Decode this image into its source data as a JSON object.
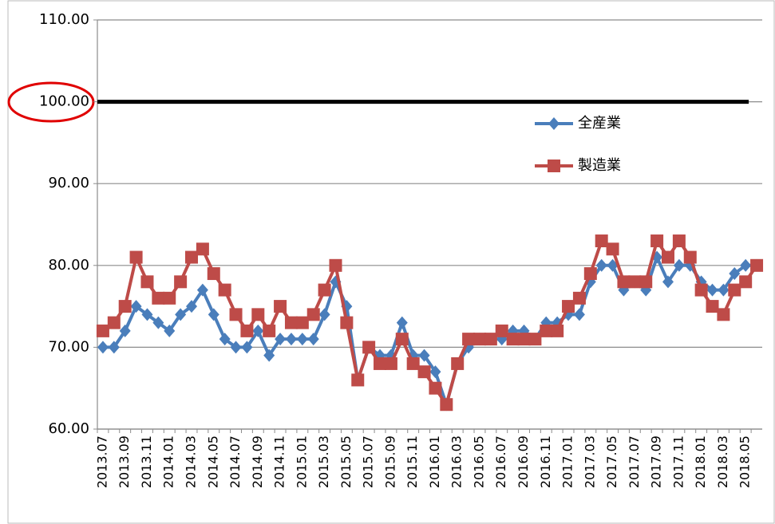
{
  "chart_data": {
    "type": "line",
    "categories": [
      "2013.07",
      null,
      "2013.09",
      null,
      "2013.11",
      null,
      "2014.01",
      null,
      "2014.03",
      null,
      "2014.05",
      null,
      "2014.07",
      null,
      "2014.09",
      null,
      "2014.11",
      null,
      "2015.01",
      null,
      "2015.03",
      null,
      "2015.05",
      null,
      "2015.07",
      null,
      "2015.09",
      null,
      "2015.11",
      null,
      "2016.01",
      null,
      "2016.03",
      null,
      "2016.05",
      null,
      "2016.07",
      null,
      "2016.09",
      null,
      "2016.11",
      null,
      "2017.01",
      null,
      "2017.03",
      null,
      "2017.05",
      null,
      "2017.07",
      null,
      "2017.09",
      null,
      "2017.11",
      null,
      "2018.01",
      null,
      "2018.03",
      null,
      "2018.05",
      null
    ],
    "series": [
      {
        "name": "全産業",
        "color": "#4a7ebb",
        "marker": "diamond",
        "values": [
          70,
          70,
          72,
          75,
          74,
          73,
          72,
          74,
          75,
          77,
          74,
          71,
          70,
          70,
          72,
          69,
          71,
          71,
          71,
          71,
          74,
          78,
          75,
          66,
          70,
          69,
          69,
          73,
          69,
          69,
          67,
          63,
          68,
          70,
          71,
          71,
          71,
          72,
          72,
          71,
          73,
          73,
          74,
          74,
          78,
          80,
          80,
          77,
          78,
          77,
          81,
          78,
          80,
          80,
          78,
          77,
          77,
          79,
          80,
          80
        ]
      },
      {
        "name": "製造業",
        "color": "#be4b48",
        "marker": "square",
        "values": [
          72,
          73,
          75,
          81,
          78,
          76,
          76,
          78,
          81,
          82,
          79,
          77,
          74,
          72,
          74,
          72,
          75,
          73,
          73,
          74,
          77,
          80,
          73,
          66,
          70,
          68,
          68,
          71,
          68,
          67,
          65,
          63,
          68,
          71,
          71,
          71,
          72,
          71,
          71,
          71,
          72,
          72,
          75,
          76,
          79,
          83,
          82,
          78,
          78,
          78,
          83,
          81,
          83,
          81,
          77,
          75,
          74,
          77,
          78,
          80
        ]
      }
    ],
    "ylim": [
      60,
      110
    ],
    "yticks": [
      {
        "value": 60,
        "label": "60.00"
      },
      {
        "value": 70,
        "label": "70.00"
      },
      {
        "value": 80,
        "label": "80.00"
      },
      {
        "value": 90,
        "label": "90.00"
      },
      {
        "value": 100,
        "label": "100.00"
      },
      {
        "value": 110,
        "label": "110.00"
      }
    ],
    "grid": true,
    "reference_line": {
      "value": 100,
      "color": "#000000"
    },
    "legend": "upper right"
  }
}
